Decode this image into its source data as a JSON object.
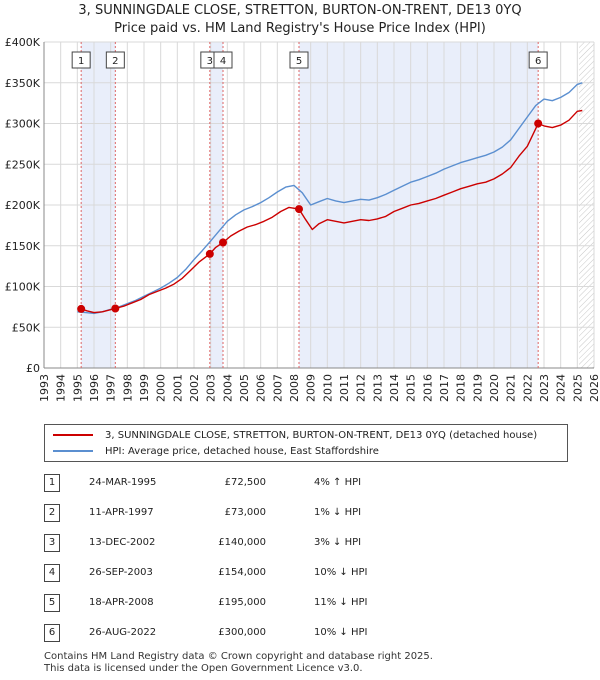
{
  "title": {
    "line1": "3, SUNNINGDALE CLOSE, STRETTON, BURTON-ON-TRENT, DE13 0YQ",
    "line2": "Price paid vs. HM Land Registry's House Price Index (HPI)"
  },
  "colors": {
    "price_line": "#cc0000",
    "hpi_line": "#5b8fd0",
    "shade": "#e9eefa",
    "grid": "#d9d9d9",
    "marker_dash": "#dd6666"
  },
  "chart_data": {
    "type": "line",
    "title": "Price paid vs. HM Land Registry's House Price Index (HPI)",
    "xlim": [
      1993,
      2026
    ],
    "ylim": [
      0,
      400000
    ],
    "x_ticks": [
      "1993",
      "1994",
      "1995",
      "1996",
      "1997",
      "1998",
      "1999",
      "2000",
      "2001",
      "2002",
      "2003",
      "2004",
      "2005",
      "2006",
      "2007",
      "2008",
      "2009",
      "2010",
      "2011",
      "2012",
      "2013",
      "2014",
      "2015",
      "2016",
      "2017",
      "2018",
      "2019",
      "2020",
      "2021",
      "2022",
      "2023",
      "2024",
      "2025",
      "2026"
    ],
    "y_ticks": [
      {
        "value": 0,
        "label": "£0"
      },
      {
        "value": 50000,
        "label": "£50K"
      },
      {
        "value": 100000,
        "label": "£100K"
      },
      {
        "value": 150000,
        "label": "£150K"
      },
      {
        "value": 200000,
        "label": "£200K"
      },
      {
        "value": 250000,
        "label": "£250K"
      },
      {
        "value": 300000,
        "label": "£300K"
      },
      {
        "value": 350000,
        "label": "£350K"
      },
      {
        "value": 400000,
        "label": "£400K"
      }
    ],
    "shaded_regions": [
      [
        1995.23,
        1997.28
      ],
      [
        2002.95,
        2003.74
      ],
      [
        2008.3,
        2022.65
      ]
    ],
    "projection_start": 2025.1,
    "series": [
      {
        "name": "3, SUNNINGDALE CLOSE, STRETTON, BURTON-ON-TRENT, DE13 0YQ (detached house)",
        "color": "#cc0000",
        "x": [
          1995.23,
          1995.6,
          1996.0,
          1996.5,
          1997.28,
          1997.8,
          1998.3,
          1998.8,
          1999.3,
          1999.8,
          2000.3,
          2000.8,
          2001.3,
          2001.8,
          2002.3,
          2002.95,
          2003.3,
          2003.74,
          2004.2,
          2004.7,
          2005.2,
          2005.7,
          2006.2,
          2006.7,
          2007.2,
          2007.7,
          2008.3,
          2008.7,
          2009.1,
          2009.5,
          2010.0,
          2010.5,
          2011.0,
          2011.5,
          2012.0,
          2012.5,
          2013.0,
          2013.5,
          2014.0,
          2014.5,
          2015.0,
          2015.5,
          2016.0,
          2016.5,
          2017.0,
          2017.5,
          2018.0,
          2018.5,
          2019.0,
          2019.5,
          2020.0,
          2020.5,
          2021.0,
          2021.5,
          2022.0,
          2022.65,
          2023.0,
          2023.5,
          2024.0,
          2024.5,
          2025.0,
          2025.3
        ],
        "y": [
          72500,
          70000,
          68000,
          69000,
          73000,
          76000,
          80000,
          84000,
          90000,
          94000,
          98000,
          103000,
          110000,
          120000,
          130000,
          140000,
          148000,
          154000,
          162000,
          168000,
          173000,
          176000,
          180000,
          185000,
          192000,
          197000,
          195000,
          182000,
          170000,
          177000,
          182000,
          180000,
          178000,
          180000,
          182000,
          181000,
          183000,
          186000,
          192000,
          196000,
          200000,
          202000,
          205000,
          208000,
          212000,
          216000,
          220000,
          223000,
          226000,
          228000,
          232000,
          238000,
          246000,
          260000,
          272000,
          300000,
          297000,
          295000,
          298000,
          304000,
          315000,
          316000
        ]
      },
      {
        "name": "HPI: Average price, detached house, East Staffordshire",
        "color": "#5b8fd0",
        "x": [
          1995.0,
          1995.5,
          1996.0,
          1996.5,
          1997.0,
          1997.5,
          1998.0,
          1998.5,
          1999.0,
          1999.5,
          2000.0,
          2000.5,
          2001.0,
          2001.5,
          2002.0,
          2002.5,
          2003.0,
          2003.5,
          2004.0,
          2004.5,
          2005.0,
          2005.5,
          2006.0,
          2006.5,
          2007.0,
          2007.5,
          2008.0,
          2008.5,
          2009.0,
          2009.5,
          2010.0,
          2010.5,
          2011.0,
          2011.5,
          2012.0,
          2012.5,
          2013.0,
          2013.5,
          2014.0,
          2014.5,
          2015.0,
          2015.5,
          2016.0,
          2016.5,
          2017.0,
          2017.5,
          2018.0,
          2018.5,
          2019.0,
          2019.5,
          2020.0,
          2020.5,
          2021.0,
          2021.5,
          2022.0,
          2022.5,
          2023.0,
          2023.5,
          2024.0,
          2024.5,
          2025.0,
          2025.3
        ],
        "y": [
          69000,
          68000,
          67000,
          69000,
          72000,
          75000,
          79000,
          83000,
          88000,
          93000,
          98000,
          104000,
          111000,
          121000,
          133000,
          144000,
          156000,
          168000,
          180000,
          188000,
          194000,
          198000,
          203000,
          209000,
          216000,
          222000,
          224000,
          215000,
          200000,
          204000,
          208000,
          205000,
          203000,
          205000,
          207000,
          206000,
          209000,
          213000,
          218000,
          223000,
          228000,
          231000,
          235000,
          239000,
          244000,
          248000,
          252000,
          255000,
          258000,
          261000,
          265000,
          271000,
          280000,
          294000,
          308000,
          322000,
          330000,
          328000,
          332000,
          338000,
          348000,
          350000
        ]
      }
    ],
    "markers": [
      {
        "label": "1",
        "x": 1995.23,
        "y": 72500
      },
      {
        "label": "2",
        "x": 1997.28,
        "y": 73000
      },
      {
        "label": "3",
        "x": 2002.95,
        "y": 140000
      },
      {
        "label": "4",
        "x": 2003.74,
        "y": 154000
      },
      {
        "label": "5",
        "x": 2008.3,
        "y": 195000
      },
      {
        "label": "6",
        "x": 2022.65,
        "y": 300000
      }
    ]
  },
  "legend": {
    "items": [
      {
        "label": "3, SUNNINGDALE CLOSE, STRETTON, BURTON-ON-TRENT, DE13 0YQ (detached house)",
        "color": "#cc0000"
      },
      {
        "label": "HPI: Average price, detached house, East Staffordshire",
        "color": "#5b8fd0"
      }
    ]
  },
  "sales": [
    {
      "num": "1",
      "date": "24-MAR-1995",
      "price": "£72,500",
      "hpi": "4% ↑ HPI"
    },
    {
      "num": "2",
      "date": "11-APR-1997",
      "price": "£73,000",
      "hpi": "1% ↓ HPI"
    },
    {
      "num": "3",
      "date": "13-DEC-2002",
      "price": "£140,000",
      "hpi": "3% ↓ HPI"
    },
    {
      "num": "4",
      "date": "26-SEP-2003",
      "price": "£154,000",
      "hpi": "10% ↓ HPI"
    },
    {
      "num": "5",
      "date": "18-APR-2008",
      "price": "£195,000",
      "hpi": "11% ↓ HPI"
    },
    {
      "num": "6",
      "date": "26-AUG-2022",
      "price": "£300,000",
      "hpi": "10% ↓ HPI"
    }
  ],
  "footer": {
    "line1": "Contains HM Land Registry data © Crown copyright and database right 2025.",
    "line2": "This data is licensed under the Open Government Licence v3.0."
  }
}
